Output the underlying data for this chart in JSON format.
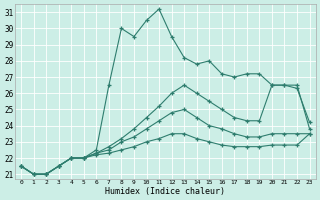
{
  "xlabel": "Humidex (Indice chaleur)",
  "bg_color": "#cceee6",
  "line_color": "#2e7d6e",
  "grid_color": "#ffffff",
  "xlim": [
    -0.5,
    23.5
  ],
  "ylim": [
    20.7,
    31.5
  ],
  "yticks": [
    21,
    22,
    23,
    24,
    25,
    26,
    27,
    28,
    29,
    30,
    31
  ],
  "xticks": [
    0,
    1,
    2,
    3,
    4,
    5,
    6,
    7,
    8,
    9,
    10,
    11,
    12,
    13,
    14,
    15,
    16,
    17,
    18,
    19,
    20,
    21,
    22,
    23
  ],
  "series": [
    [
      21.5,
      21.0,
      21.0,
      21.5,
      22.0,
      22.0,
      22.5,
      26.5,
      30.0,
      29.5,
      30.5,
      31.2,
      29.5,
      28.2,
      27.8,
      28.0,
      27.2,
      27.0,
      27.2,
      27.2,
      26.5,
      26.5,
      26.5,
      23.8
    ],
    [
      21.5,
      21.0,
      21.0,
      21.5,
      22.0,
      22.0,
      22.3,
      22.7,
      23.2,
      23.8,
      24.5,
      25.2,
      26.0,
      26.5,
      26.0,
      25.5,
      25.0,
      24.5,
      24.3,
      24.3,
      26.5,
      26.5,
      26.3,
      24.2
    ],
    [
      21.5,
      21.0,
      21.0,
      21.5,
      22.0,
      22.0,
      22.3,
      22.5,
      23.0,
      23.3,
      23.8,
      24.3,
      24.8,
      25.0,
      24.5,
      24.0,
      23.8,
      23.5,
      23.3,
      23.3,
      23.5,
      23.5,
      23.5,
      23.5
    ],
    [
      21.5,
      21.0,
      21.0,
      21.5,
      22.0,
      22.0,
      22.2,
      22.3,
      22.5,
      22.7,
      23.0,
      23.2,
      23.5,
      23.5,
      23.2,
      23.0,
      22.8,
      22.7,
      22.7,
      22.7,
      22.8,
      22.8,
      22.8,
      23.5
    ]
  ]
}
